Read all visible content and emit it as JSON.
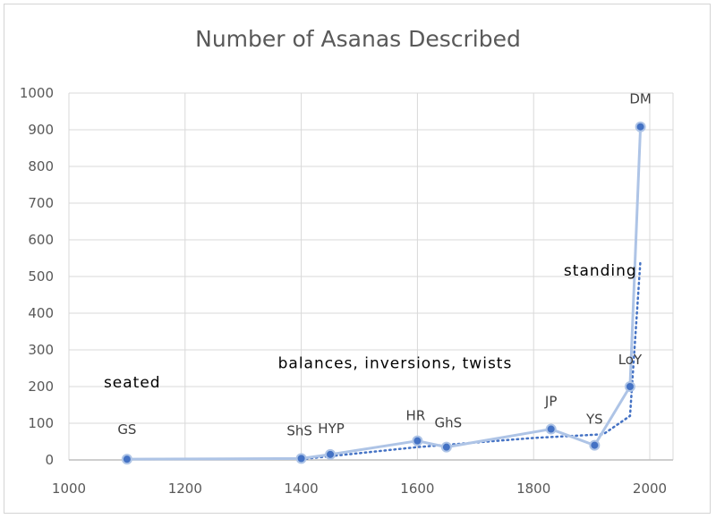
{
  "chart_data": {
    "type": "scatter",
    "title": "Number of Asanas Described",
    "xlim": [
      1000,
      2000
    ],
    "ylim": [
      0,
      1000
    ],
    "x_ticks": [
      1000,
      1200,
      1400,
      1600,
      1800,
      2000
    ],
    "y_ticks": [
      0,
      100,
      200,
      300,
      400,
      500,
      600,
      700,
      800,
      900,
      1000
    ],
    "grid": true,
    "legend": "none",
    "series": [
      {
        "points": [
          {
            "label": "GS",
            "x": 1100,
            "y": 2
          },
          {
            "label": "ShS",
            "x": 1400,
            "y": 4
          },
          {
            "label": "HYP",
            "x": 1450,
            "y": 15
          },
          {
            "label": "HR",
            "x": 1600,
            "y": 52
          },
          {
            "label": "GhS",
            "x": 1650,
            "y": 35
          },
          {
            "label": "JP",
            "x": 1830,
            "y": 84
          },
          {
            "label": "YS",
            "x": 1905,
            "y": 40
          },
          {
            "label": "LoY",
            "x": 1966,
            "y": 200
          },
          {
            "label": "DM",
            "x": 1984,
            "y": 908
          }
        ]
      }
    ],
    "trendline": {
      "style": "dotted",
      "points": [
        [
          1400,
          2
        ],
        [
          1600,
          35
        ],
        [
          1800,
          60
        ],
        [
          1920,
          70
        ],
        [
          1966,
          120
        ],
        [
          1984,
          545
        ]
      ]
    },
    "annotations": [
      {
        "text": "seated",
        "x": 1060,
        "y": 198
      },
      {
        "text": "balances, inversions, twists",
        "x": 1360,
        "y": 250
      },
      {
        "text": "standing",
        "x": 1915,
        "y": 503
      }
    ],
    "colors": {
      "line": "#aec4e6",
      "marker": "#4472c4",
      "trend": "#4472c4",
      "grid": "#d9d9d9"
    }
  }
}
